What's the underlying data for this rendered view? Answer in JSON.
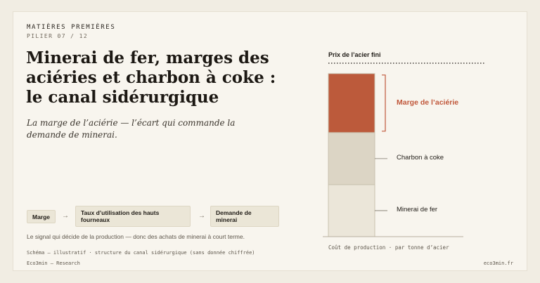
{
  "header": {
    "eyebrow": "MATIÈRES PREMIÈRES",
    "pillar": "PILIER 07 / 12",
    "title": "Minerai de fer, marges des aciéries et charbon à coke : le canal sidérurgique",
    "subtitle": "La marge de l’aciérie — l’écart qui commande la demande de minerai."
  },
  "flow": {
    "steps": [
      "Marge",
      "Taux d’utilisation des hauts fourneaux",
      "Demande de minerai"
    ],
    "arrow": "→",
    "caption": "Le signal qui décide de la production — donc des achats de minerai à court terme."
  },
  "chart_data": {
    "type": "bar",
    "stacked": true,
    "top_label": "Prix de l’acier fini",
    "axis_label": "Coût de production · par tonne d’acier",
    "segments": [
      {
        "name": "Minerai de fer",
        "share": 0.3,
        "color": "#ebe6d9"
      },
      {
        "name": "Charbon à coke",
        "share": 0.3,
        "color": "#dcd5c5"
      },
      {
        "name": "Marge de l’aciérie",
        "share": 0.34,
        "color": "#bc5a3b"
      }
    ],
    "accent_color": "#c0573a"
  },
  "footer": {
    "note": "Schéma — illustratif · structure du canal sidérurgique (sans donnée chiffrée)",
    "left": "Eco3min — Research",
    "right": "eco3min.fr"
  }
}
